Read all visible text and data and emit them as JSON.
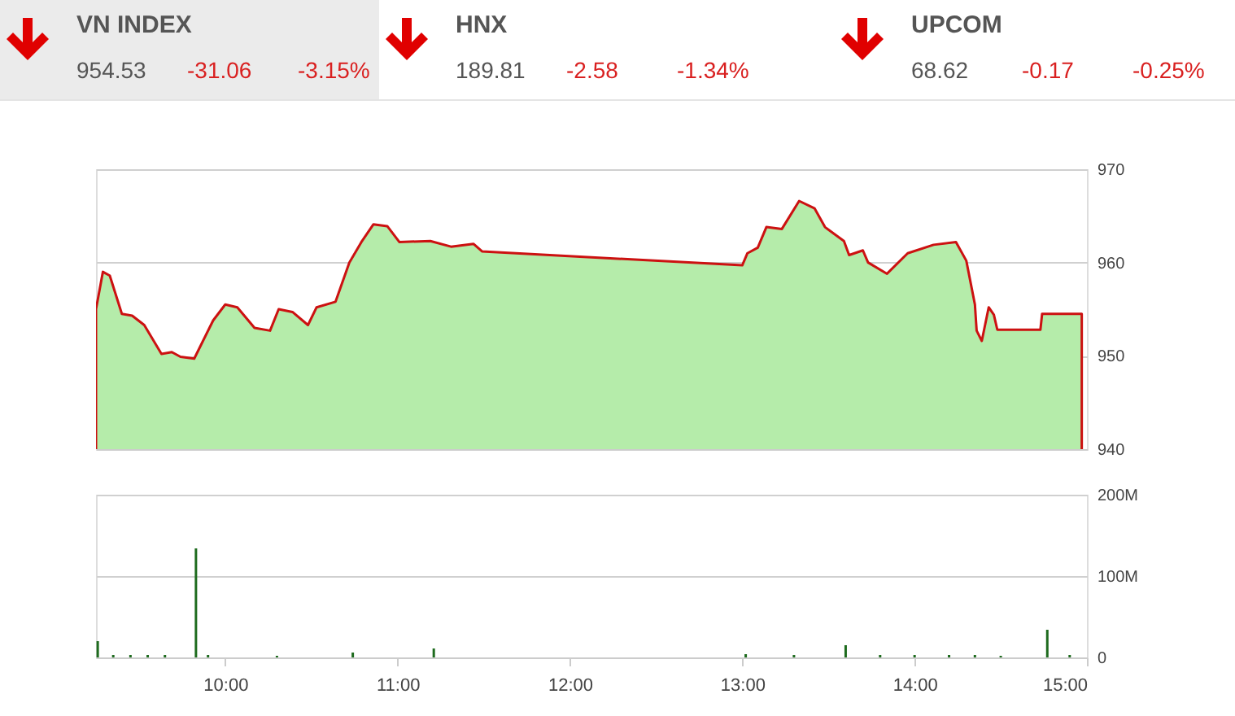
{
  "chart_data": [
    {
      "type": "other",
      "annotations": [
        "VN INDEX",
        "954.53",
        "-31.06",
        "-3.15%",
        "HNX",
        "189.81",
        "-2.58",
        "-1.34%",
        "UPCOM",
        "68.62",
        "-0.17",
        "-0.25%"
      ]
    },
    {
      "type": "area",
      "x": [
        9.25,
        9.29,
        9.33,
        9.4,
        9.46,
        9.53,
        9.63,
        9.69,
        9.74,
        9.82,
        9.93,
        10.0,
        10.07,
        10.17,
        10.26,
        10.31,
        10.39,
        10.48,
        10.53,
        10.64,
        10.72,
        10.79,
        10.86,
        10.94,
        11.01,
        11.19,
        11.31,
        11.44,
        11.49,
        13.0,
        13.03,
        13.09,
        13.14,
        13.23,
        13.33,
        13.42,
        13.48,
        13.59,
        13.62,
        13.7,
        13.73,
        13.84,
        13.96,
        14.11,
        14.24,
        14.3,
        14.35,
        14.36,
        14.39,
        14.43,
        14.46,
        14.48,
        14.73,
        14.74,
        14.97
      ],
      "series": [
        {
          "color": "#b5ecaa",
          "values": [
            955.0,
            959.0,
            958.6,
            954.5,
            954.3,
            953.3,
            950.2,
            950.4,
            949.9,
            949.7,
            953.8,
            955.5,
            955.2,
            953.0,
            952.7,
            955.0,
            954.7,
            953.3,
            955.2,
            955.8,
            960.0,
            962.2,
            964.1,
            963.9,
            962.2,
            962.3,
            961.7,
            962.0,
            961.2,
            959.7,
            961.0,
            961.6,
            963.8,
            963.6,
            966.6,
            965.8,
            963.8,
            962.3,
            960.8,
            961.3,
            960.0,
            958.8,
            961.0,
            961.9,
            962.2,
            960.2,
            955.5,
            952.7,
            951.6,
            955.2,
            954.4,
            952.8,
            952.8,
            954.5,
            954.5
          ]
        }
      ],
      "xlim": [
        9.25,
        15
      ],
      "ylim": [
        940,
        970
      ],
      "yticks": [
        940,
        950,
        960,
        970
      ],
      "grid": "y",
      "tick_labels": "y"
    },
    {
      "type": "bar",
      "x": [
        9.26,
        9.35,
        9.45,
        9.55,
        9.65,
        9.83,
        9.9,
        10.3,
        10.74,
        11.21,
        13.02,
        13.3,
        13.6,
        13.8,
        14.0,
        14.2,
        14.35,
        14.5,
        14.77,
        14.9
      ],
      "series": [
        {
          "color": "#1e6b1e",
          "values": [
            20,
            3,
            3,
            3,
            3,
            134,
            3,
            2,
            6,
            11,
            4,
            3,
            15,
            3,
            3,
            3,
            3,
            2,
            34,
            3
          ]
        }
      ],
      "xlim": [
        9.25,
        15
      ],
      "xticks": [
        {
          "value": 10,
          "label": "10:00"
        },
        {
          "value": 11,
          "label": "11:00"
        },
        {
          "value": 12,
          "label": "12:00"
        },
        {
          "value": 13,
          "label": "13:00"
        },
        {
          "value": 14,
          "label": "14:00"
        },
        {
          "value": 15,
          "label": "15:00"
        }
      ],
      "ylim": [
        0,
        200
      ],
      "yticks": [
        0,
        {
          "value": 100,
          "label": "100M"
        },
        {
          "value": 200,
          "label": "200M"
        }
      ],
      "grid": "y"
    }
  ]
}
